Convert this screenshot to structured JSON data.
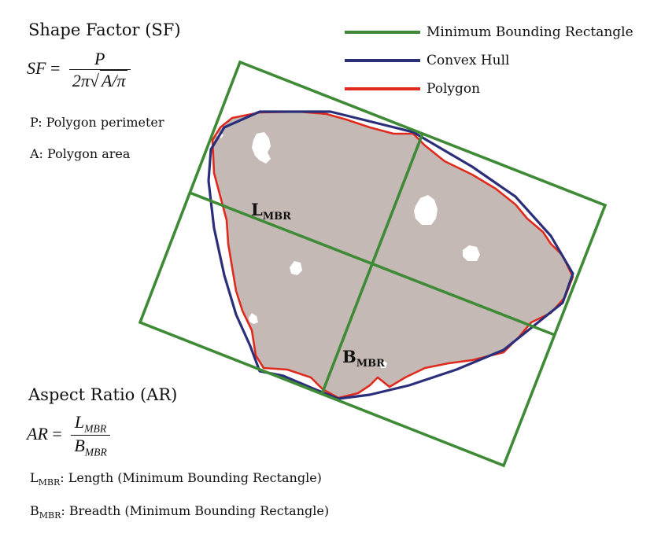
{
  "shape_factor": {
    "heading": "Shape Factor (SF)",
    "lhs": "SF",
    "equals": "=",
    "numerator": "P",
    "den_prefix": "2π",
    "den_radicand": "A/π",
    "note_p": "P: Polygon perimeter",
    "note_a": "A: Polygon area"
  },
  "aspect_ratio": {
    "heading": "Aspect Ratio (AR)",
    "lhs": "AR",
    "equals": "=",
    "num_base": "L",
    "num_sub": "MBR",
    "den_base": "B",
    "den_sub": "MBR",
    "note_l_base": "L",
    "note_l_sub": "MBR",
    "note_l_text": ": Length (Minimum Bounding Rectangle)",
    "note_b_base": "B",
    "note_b_sub": "MBR",
    "note_b_text": ": Breadth (Minimum Bounding Rectangle)"
  },
  "legend": [
    {
      "label": "Minimum Bounding Rectangle",
      "color": "#3f8a36"
    },
    {
      "label": "Convex Hull",
      "color": "#2b2f7a"
    },
    {
      "label": "Polygon",
      "color": "#e02a1e"
    }
  ],
  "labels": {
    "l_base": "L",
    "l_sub": "MBR",
    "b_base": "B",
    "b_sub": "MBR"
  },
  "colors": {
    "polygon_fill": "#c4b9b4",
    "mbr": "#3f8a36",
    "hull": "#2b2f7a",
    "polygon": "#e02a1e"
  }
}
